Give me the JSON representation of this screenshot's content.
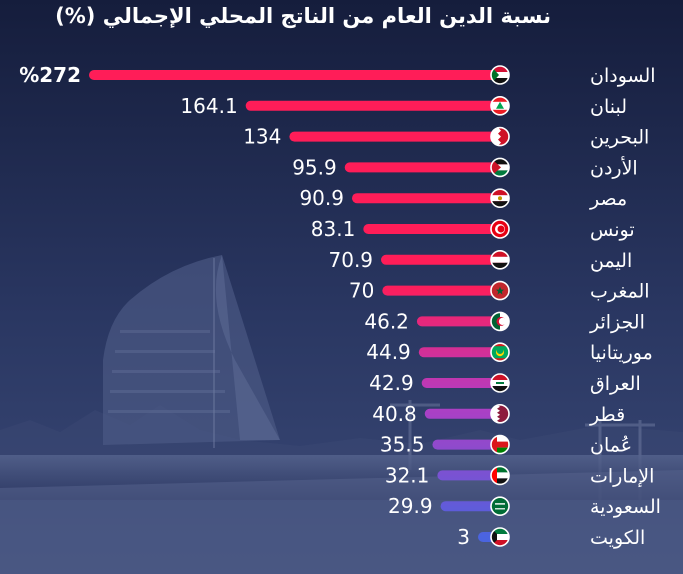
{
  "chart_data": {
    "type": "bar",
    "orientation": "horizontal",
    "title": "نسبة الدين العام من الناتج المحلي الإجمالي (%)",
    "categories": [
      "السودان",
      "لبنان",
      "البحرين",
      "الأردن",
      "مصر",
      "تونس",
      "اليمن",
      "المغرب",
      "الجزائر",
      "موريتانيا",
      "العراق",
      "قطر",
      "عُمان",
      "الإمارات",
      "السعودية",
      "الكويت"
    ],
    "values": [
      272,
      164.1,
      134,
      95.9,
      90.9,
      83.1,
      70.9,
      70,
      46.2,
      44.9,
      42.9,
      40.8,
      35.5,
      32.1,
      29.9,
      3
    ],
    "value_labels": [
      "%272",
      "164.1",
      "134",
      "95.9",
      "90.9",
      "83.1",
      "70.9",
      "70",
      "46.2",
      "44.9",
      "42.9",
      "40.8",
      "35.5",
      "32.1",
      "29.9",
      "3"
    ],
    "icons": [
      "flag-sudan",
      "flag-lebanon",
      "flag-bahrain",
      "flag-jordan",
      "flag-egypt",
      "flag-tunisia",
      "flag-yemen",
      "flag-morocco",
      "flag-algeria",
      "flag-mauritania",
      "flag-iraq",
      "flag-qatar",
      "flag-oman",
      "flag-uae",
      "flag-saudi-arabia",
      "flag-kuwait"
    ],
    "bar_color_start": "#ff1d58",
    "bar_color_end": "#4a64e0",
    "grid": false,
    "legend": "none"
  }
}
